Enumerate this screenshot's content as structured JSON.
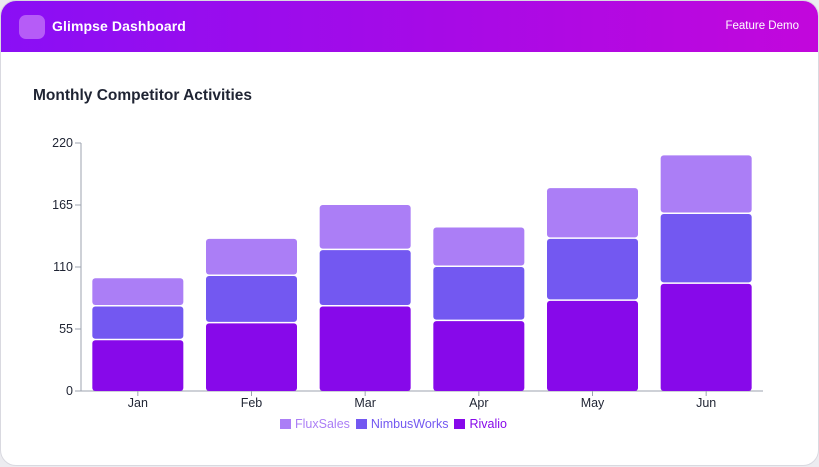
{
  "header": {
    "app_title": "Glimpse Dashboard",
    "demo_label": "Feature Demo"
  },
  "colors": {
    "FluxSales": "#ab7ef6",
    "NimbusWorks": "#7358f1",
    "Rivalio": "#8709ea",
    "axis": "#9ca3af",
    "text": "#1f2433"
  },
  "chart_data": {
    "type": "bar",
    "stacked": true,
    "title": "Monthly Competitor Activities",
    "xlabel": "",
    "ylabel": "",
    "categories": [
      "Jan",
      "Feb",
      "Mar",
      "Apr",
      "May",
      "Jun"
    ],
    "series": [
      {
        "name": "Rivalio",
        "values": [
          45,
          60,
          75,
          62,
          80,
          95
        ]
      },
      {
        "name": "NimbusWorks",
        "values": [
          30,
          42,
          50,
          48,
          55,
          62
        ]
      },
      {
        "name": "FluxSales",
        "values": [
          25,
          33,
          40,
          35,
          45,
          52
        ]
      }
    ],
    "ylim": [
      0,
      220
    ],
    "yticks": [
      "0",
      "55",
      "110",
      "165",
      "220"
    ],
    "legend": [
      "FluxSales",
      "NimbusWorks",
      "Rivalio"
    ],
    "legend_position": "bottom-center",
    "grid": false
  }
}
